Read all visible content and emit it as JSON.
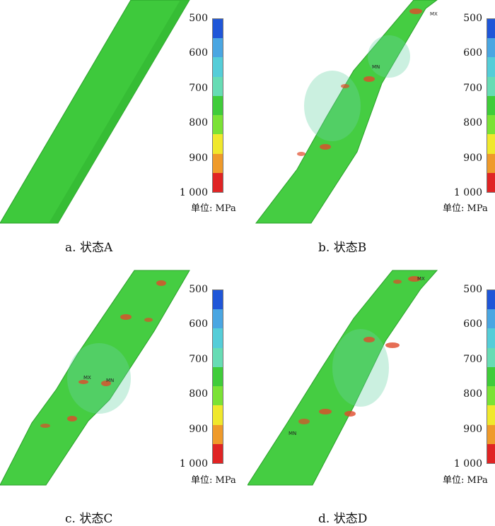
{
  "colors": {
    "band_fill": "#3ec93c",
    "band_edge": "#2aa02a",
    "scale": [
      "#1f56d8",
      "#4aa6e2",
      "#55cdd8",
      "#67dcb4",
      "#40cc3a",
      "#7be235",
      "#f0e82c",
      "#ef9a2a",
      "#e02424"
    ]
  },
  "legend": {
    "ticks": [
      "500",
      "600",
      "700",
      "800",
      "900",
      "1 000"
    ],
    "unit": "单位: MPa"
  },
  "panels": [
    {
      "caption": "a. 状态A",
      "markers": []
    },
    {
      "caption": "b. 状态B",
      "markers": [
        "MX",
        "MN"
      ]
    },
    {
      "caption": "c. 状态C",
      "markers": [
        "MX",
        "MN"
      ]
    },
    {
      "caption": "d. 状态D",
      "markers": [
        "MX",
        "MN"
      ]
    }
  ]
}
